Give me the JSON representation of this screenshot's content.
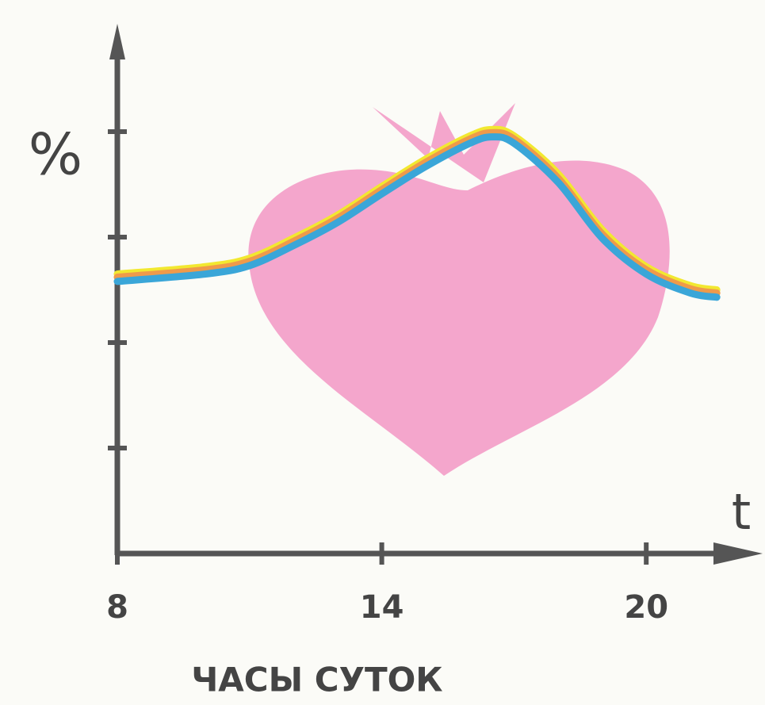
{
  "chart_data": {
    "type": "line",
    "y_label": "%",
    "x_label": "t",
    "caption": "ЧАСЫ СУТОК",
    "x": [
      8,
      10,
      11,
      12,
      13,
      14,
      15,
      16,
      16.5,
      17,
      18,
      19,
      20,
      21,
      21.6
    ],
    "series": [
      {
        "color": "#f2e830",
        "values": [
          2.65,
          2.72,
          2.8,
          2.99,
          3.21,
          3.48,
          3.74,
          3.96,
          4.02,
          3.96,
          3.6,
          3.07,
          2.72,
          2.54,
          2.5
        ]
      },
      {
        "color": "#ef9a4a",
        "values": [
          2.62,
          2.69,
          2.77,
          2.96,
          3.18,
          3.45,
          3.71,
          3.93,
          3.99,
          3.93,
          3.56,
          3.03,
          2.69,
          2.51,
          2.47
        ]
      },
      {
        "color": "#3aa6d8",
        "values": [
          2.58,
          2.65,
          2.73,
          2.92,
          3.14,
          3.41,
          3.67,
          3.89,
          3.95,
          3.89,
          3.52,
          2.99,
          2.65,
          2.47,
          2.43
        ]
      }
    ],
    "xlim": [
      8,
      22.5
    ],
    "xticks": [
      8,
      14,
      20
    ],
    "ylim": [
      0,
      5
    ],
    "yticks": [
      1,
      2,
      3,
      4
    ],
    "ytick_labels": false
  }
}
